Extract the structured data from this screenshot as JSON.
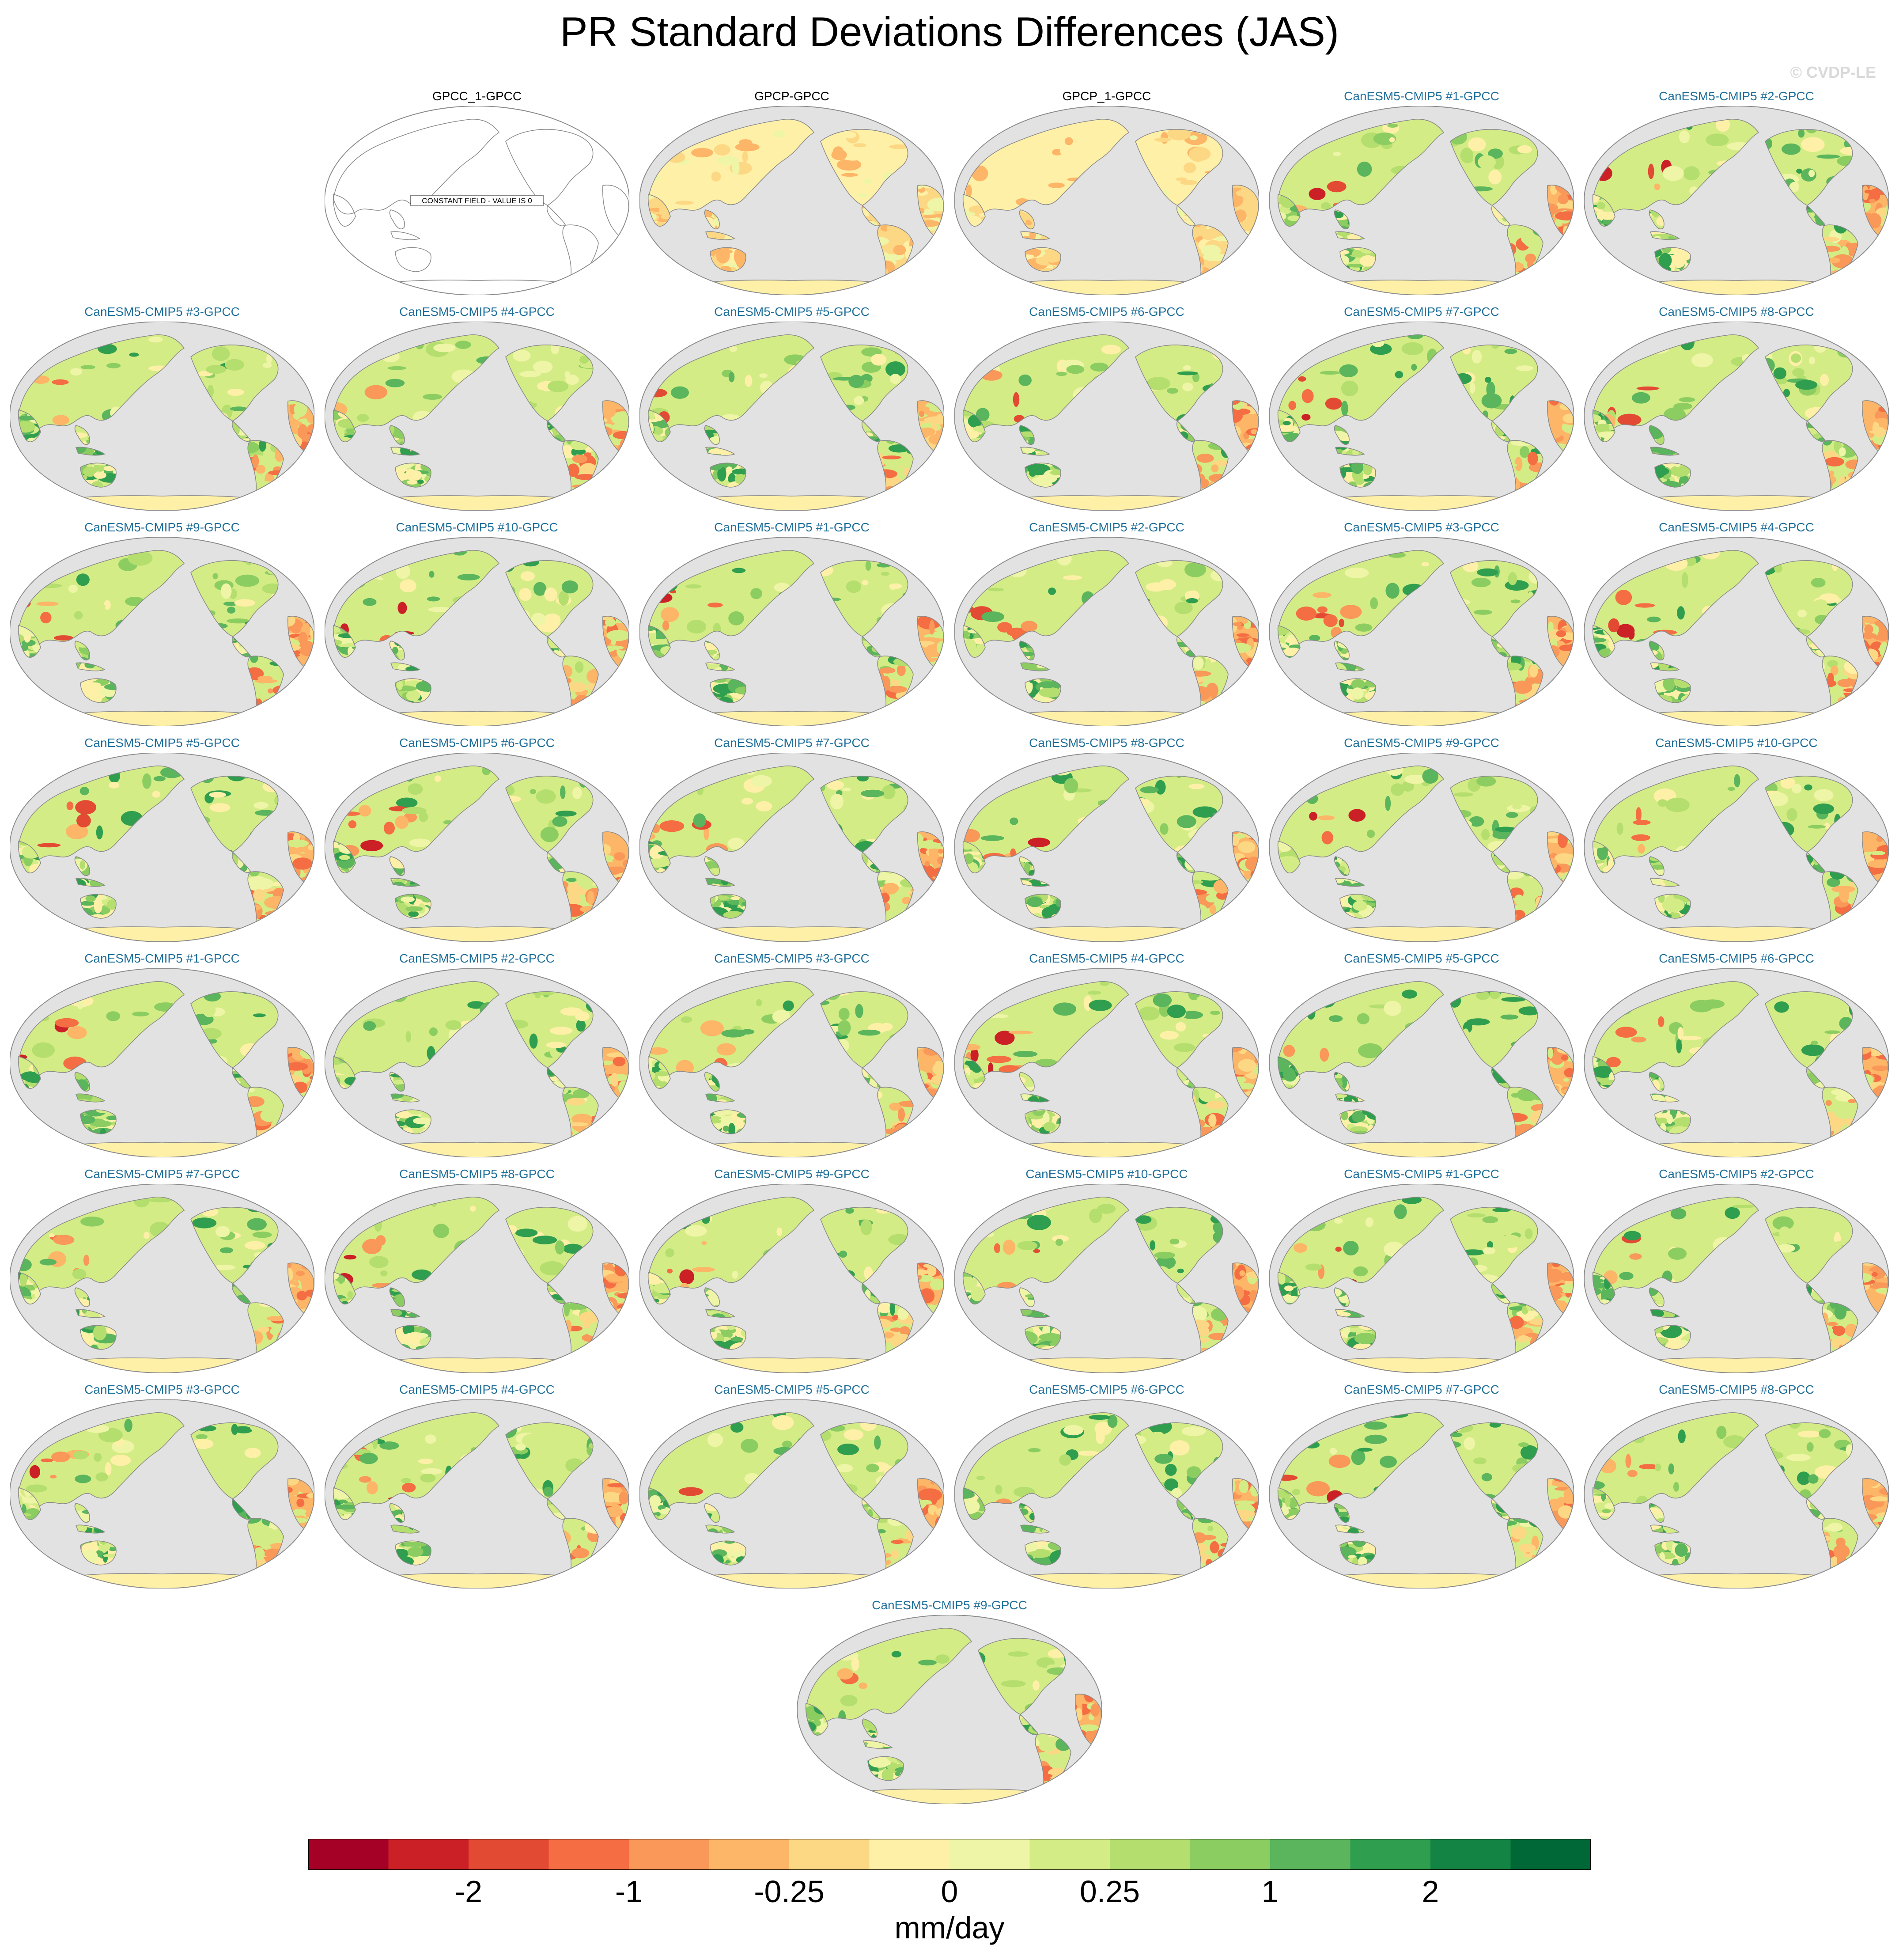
{
  "title": "PR Standard Deviations Differences (JAS)",
  "watermark": "© CVDP-LE",
  "constant_field_note": "CONSTANT FIELD - VALUE IS 0",
  "panels": [
    {
      "title": "GPCC_1-GPCC",
      "kind": "obs",
      "constant": true
    },
    {
      "title": "GPCP-GPCC",
      "kind": "obs",
      "constant": false
    },
    {
      "title": "GPCP_1-GPCC",
      "kind": "obs",
      "constant": false
    },
    {
      "title": "CanESM5-CMIP5 #1-GPCC",
      "kind": "model",
      "constant": false
    },
    {
      "title": "CanESM5-CMIP5 #2-GPCC",
      "kind": "model",
      "constant": false
    },
    {
      "title": "CanESM5-CMIP5 #3-GPCC",
      "kind": "model",
      "constant": false
    },
    {
      "title": "CanESM5-CMIP5 #4-GPCC",
      "kind": "model",
      "constant": false
    },
    {
      "title": "CanESM5-CMIP5 #5-GPCC",
      "kind": "model",
      "constant": false
    },
    {
      "title": "CanESM5-CMIP5 #6-GPCC",
      "kind": "model",
      "constant": false
    },
    {
      "title": "CanESM5-CMIP5 #7-GPCC",
      "kind": "model",
      "constant": false
    },
    {
      "title": "CanESM5-CMIP5 #8-GPCC",
      "kind": "model",
      "constant": false
    },
    {
      "title": "CanESM5-CMIP5 #9-GPCC",
      "kind": "model",
      "constant": false
    },
    {
      "title": "CanESM5-CMIP5 #10-GPCC",
      "kind": "model",
      "constant": false
    },
    {
      "title": "CanESM5-CMIP5 #1-GPCC",
      "kind": "model",
      "constant": false
    },
    {
      "title": "CanESM5-CMIP5 #2-GPCC",
      "kind": "model",
      "constant": false
    },
    {
      "title": "CanESM5-CMIP5 #3-GPCC",
      "kind": "model",
      "constant": false
    },
    {
      "title": "CanESM5-CMIP5 #4-GPCC",
      "kind": "model",
      "constant": false
    },
    {
      "title": "CanESM5-CMIP5 #5-GPCC",
      "kind": "model",
      "constant": false
    },
    {
      "title": "CanESM5-CMIP5 #6-GPCC",
      "kind": "model",
      "constant": false
    },
    {
      "title": "CanESM5-CMIP5 #7-GPCC",
      "kind": "model",
      "constant": false
    },
    {
      "title": "CanESM5-CMIP5 #8-GPCC",
      "kind": "model",
      "constant": false
    },
    {
      "title": "CanESM5-CMIP5 #9-GPCC",
      "kind": "model",
      "constant": false
    },
    {
      "title": "CanESM5-CMIP5 #10-GPCC",
      "kind": "model",
      "constant": false
    },
    {
      "title": "CanESM5-CMIP5 #1-GPCC",
      "kind": "model",
      "constant": false
    },
    {
      "title": "CanESM5-CMIP5 #2-GPCC",
      "kind": "model",
      "constant": false
    },
    {
      "title": "CanESM5-CMIP5 #3-GPCC",
      "kind": "model",
      "constant": false
    },
    {
      "title": "CanESM5-CMIP5 #4-GPCC",
      "kind": "model",
      "constant": false
    },
    {
      "title": "CanESM5-CMIP5 #5-GPCC",
      "kind": "model",
      "constant": false
    },
    {
      "title": "CanESM5-CMIP5 #6-GPCC",
      "kind": "model",
      "constant": false
    },
    {
      "title": "CanESM5-CMIP5 #7-GPCC",
      "kind": "model",
      "constant": false
    },
    {
      "title": "CanESM5-CMIP5 #8-GPCC",
      "kind": "model",
      "constant": false
    },
    {
      "title": "CanESM5-CMIP5 #9-GPCC",
      "kind": "model",
      "constant": false
    },
    {
      "title": "CanESM5-CMIP5 #10-GPCC",
      "kind": "model",
      "constant": false
    },
    {
      "title": "CanESM5-CMIP5 #1-GPCC",
      "kind": "model",
      "constant": false
    },
    {
      "title": "CanESM5-CMIP5 #2-GPCC",
      "kind": "model",
      "constant": false
    },
    {
      "title": "CanESM5-CMIP5 #3-GPCC",
      "kind": "model",
      "constant": false
    },
    {
      "title": "CanESM5-CMIP5 #4-GPCC",
      "kind": "model",
      "constant": false
    },
    {
      "title": "CanESM5-CMIP5 #5-GPCC",
      "kind": "model",
      "constant": false
    },
    {
      "title": "CanESM5-CMIP5 #6-GPCC",
      "kind": "model",
      "constant": false
    },
    {
      "title": "CanESM5-CMIP5 #7-GPCC",
      "kind": "model",
      "constant": false
    },
    {
      "title": "CanESM5-CMIP5 #8-GPCC",
      "kind": "model",
      "constant": false
    },
    {
      "title": "CanESM5-CMIP5 #9-GPCC",
      "kind": "model",
      "constant": false
    }
  ],
  "colorbar": {
    "units": "mm/day",
    "colors": [
      "#a50026",
      "#cc2027",
      "#e34a33",
      "#f46d43",
      "#f99858",
      "#fdb567",
      "#fdd884",
      "#fff0a8",
      "#eff5a6",
      "#d4ec86",
      "#b4de6e",
      "#8ccd62",
      "#5ab55c",
      "#2f9e4f",
      "#138444",
      "#006837"
    ],
    "tick_labels": [
      {
        "label": "-2",
        "boundary": 2
      },
      {
        "label": "-1",
        "boundary": 4
      },
      {
        "label": "-0.25",
        "boundary": 6
      },
      {
        "label": "0",
        "boundary": 8
      },
      {
        "label": "0.25",
        "boundary": 10
      },
      {
        "label": "1",
        "boundary": 12
      },
      {
        "label": "2",
        "boundary": 14
      }
    ]
  },
  "map_colors": {
    "ocean": "#e2e2e2",
    "coast": "#8a8a8a",
    "outline": "#8c8c8c"
  }
}
